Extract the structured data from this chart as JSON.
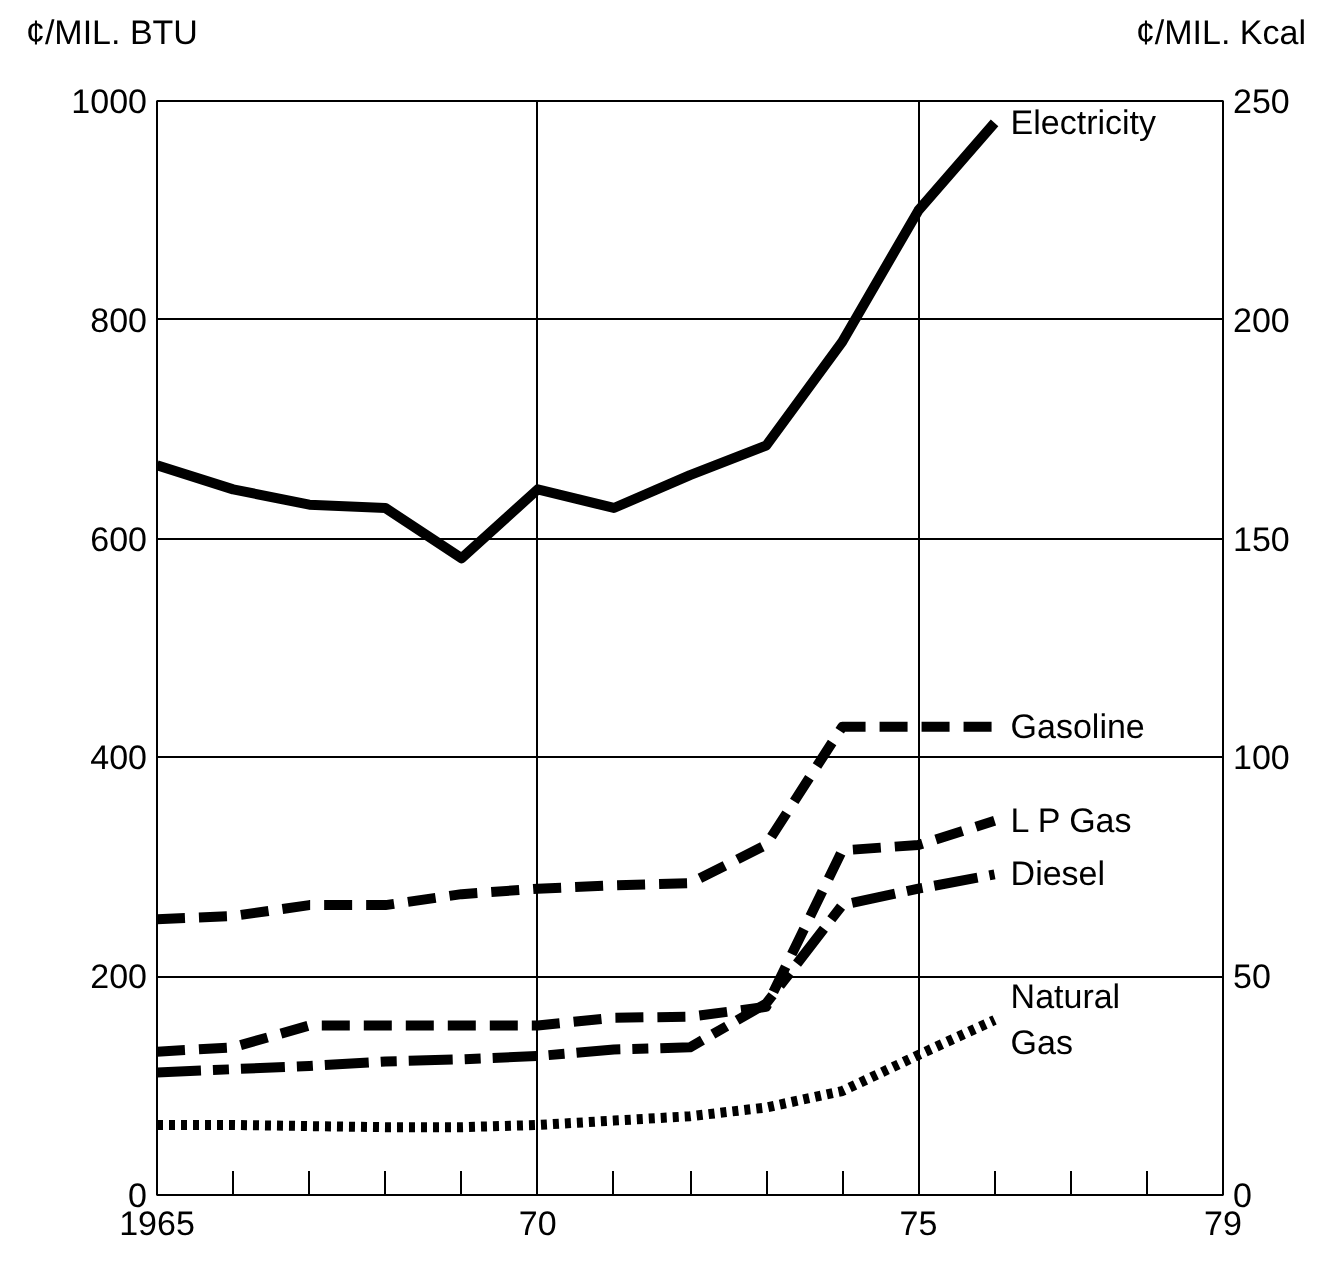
{
  "chart_data": {
    "type": "line",
    "ylabel": "¢/MIL. BTU",
    "y2label": "¢/MIL. Kcal",
    "x": [
      1965,
      1966,
      1967,
      1968,
      1969,
      1970,
      1971,
      1972,
      1973,
      1974,
      1975,
      1976
    ],
    "xlim": [
      1965,
      1979
    ],
    "xticks": [
      1965,
      {
        "value": 1966,
        "label": null
      },
      {
        "value": 1967,
        "label": null
      },
      {
        "value": 1968,
        "label": null
      },
      {
        "value": 1969,
        "label": null
      },
      {
        "value": 1970,
        "label": "70"
      },
      {
        "value": 1971,
        "label": null
      },
      {
        "value": 1972,
        "label": null
      },
      {
        "value": 1973,
        "label": null
      },
      {
        "value": 1974,
        "label": null
      },
      {
        "value": 1975,
        "label": "75"
      },
      {
        "value": 1976,
        "label": null
      },
      {
        "value": 1977,
        "label": null
      },
      {
        "value": 1978,
        "label": null
      },
      {
        "value": 1979,
        "label": "79"
      }
    ],
    "ylim": [
      0,
      1000
    ],
    "yticks": [
      0,
      200,
      400,
      600,
      800,
      1000
    ],
    "y2lim": [
      0,
      250
    ],
    "y2ticks": [
      0,
      50,
      100,
      150,
      200,
      250
    ],
    "grid": true,
    "marker": "none",
    "series": [
      {
        "name": "Electricity",
        "color": "#000000",
        "line_style": "solid",
        "values": [
          667,
          645,
          631,
          628,
          582,
          645,
          628,
          658,
          685,
          780,
          900,
          980
        ]
      },
      {
        "name": "Gasoline",
        "color": "#000000",
        "line_style": "dashed",
        "values": [
          252,
          255,
          265,
          265,
          275,
          280,
          283,
          285,
          320,
          428,
          428,
          428
        ]
      },
      {
        "name": "L P  Gas",
        "color": "#000000",
        "line_style": "dashed",
        "values": [
          131,
          135,
          155,
          155,
          155,
          155,
          162,
          163,
          172,
          315,
          320,
          342
        ]
      },
      {
        "name": "Diesel",
        "color": "#000000",
        "line_style": "dashdot",
        "values": [
          112,
          115,
          118,
          122,
          124,
          127,
          133,
          135,
          175,
          265,
          280,
          293
        ]
      },
      {
        "name": "Natural\nGas",
        "color": "#000000",
        "line_style": "dotted",
        "values": [
          64,
          64,
          63,
          62,
          62,
          64,
          68,
          72,
          80,
          95,
          128,
          160
        ]
      }
    ]
  }
}
